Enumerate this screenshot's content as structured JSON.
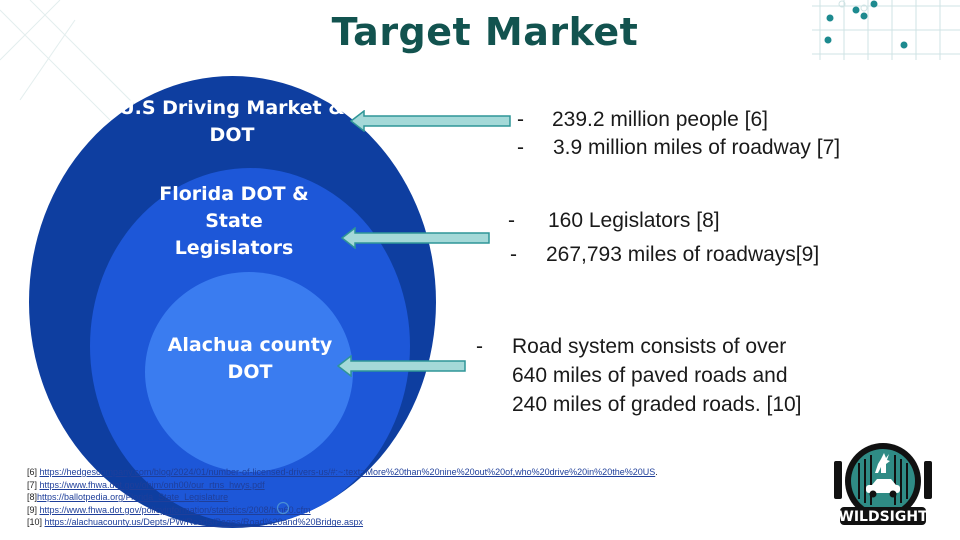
{
  "slide": {
    "title": "Target Market",
    "circles": {
      "outer_label": "U.S Driving Market & DOT",
      "middle_label": "Florida DOT & State Legislators",
      "inner_label": "Alachua county DOT"
    },
    "bullets": {
      "us": [
        "239.2 million people [6]",
        "3.9 million miles of roadway [7]"
      ],
      "florida": [
        "160 Legislators [8]",
        "267,793 miles of roadways[9]"
      ],
      "alachua": [
        "Road system consists of over",
        "640 miles of paved roads and",
        "240 miles of graded roads. [10]"
      ]
    },
    "dash": "-",
    "references": [
      {
        "prefix": "[6] ",
        "url": "https://hedgescompany.com/blog/2024/01/number-of-licensed-drivers-us/#:~:text=More%20than%20nine%20out%20of,who%20drive%20in%20the%20US",
        "suffix": "."
      },
      {
        "prefix": "[7] ",
        "url": "https://www.fhwa.dot.gov/ohim/onh00/our_rtns_hwys.pdf",
        "suffix": ""
      },
      {
        "prefix": "[8]",
        "url": "https://ballotpedia.org/Florida_State_Legislature",
        "suffix": ""
      },
      {
        "prefix": "[9] ",
        "url": "https://www.fhwa.dot.gov/policyinformation/statistics/2008/hm60.cfm",
        "suffix": ""
      },
      {
        "prefix": "[10] ",
        "url": "https://alachuacounty.us/Depts/PW/Roads/Pages/Road%20and%20Bridge.aspx",
        "suffix": ""
      }
    ],
    "logo_text": "WILDSIGHT",
    "colors": {
      "title": "#12534f",
      "outer_circle": "#0e3ea0",
      "middle_circle": "#1d57d8",
      "inner_circle": "#3a7cf0",
      "arrow_fill": "#a4d9d8",
      "arrow_stroke": "#2f9597",
      "accent_teal": "#1d8a8f"
    }
  }
}
